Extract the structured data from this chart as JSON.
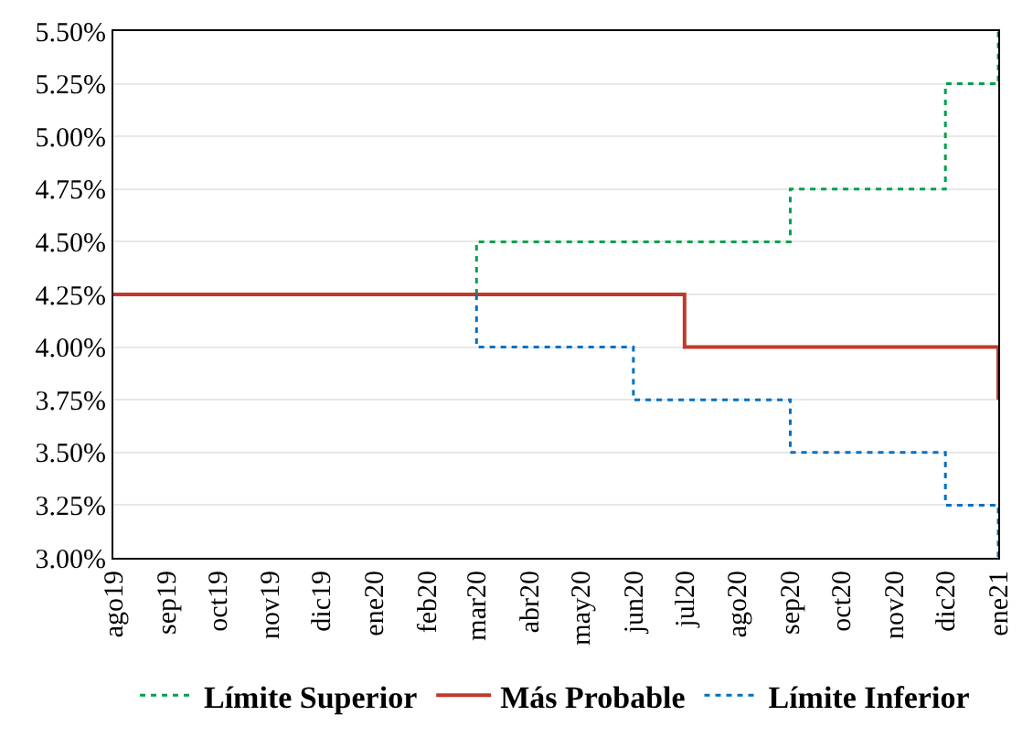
{
  "chart_data": {
    "type": "step",
    "x": [
      "2019-08",
      "2019-09",
      "2019-10",
      "2019-11",
      "2019-12",
      "2020-01",
      "2020-02",
      "2020-03",
      "2020-04",
      "2020-05",
      "2020-06",
      "2020-07",
      "2020-08",
      "2020-09",
      "2020-10",
      "2020-11",
      "2020-12",
      "2021-01"
    ],
    "series": [
      {
        "name": "Límite Superior",
        "color": "#00a050",
        "line_style": "dotted",
        "x": [
          "2020-03",
          "2020-03",
          "2020-04",
          "2020-05",
          "2020-06",
          "2020-07",
          "2020-08",
          "2020-09",
          "2020-10",
          "2020-11",
          "2020-12",
          "2021-01"
        ],
        "values": [
          4.25,
          4.5,
          4.5,
          4.5,
          4.5,
          4.5,
          4.5,
          4.75,
          4.75,
          4.75,
          5.25,
          5.5
        ]
      },
      {
        "name": "Más Probable",
        "color": "#c0392b",
        "line_style": "solid",
        "values": [
          4.25,
          4.25,
          4.25,
          4.25,
          4.25,
          4.25,
          4.25,
          4.25,
          4.25,
          4.25,
          4.25,
          4.0,
          4.0,
          4.0,
          4.0,
          4.0,
          4.0,
          3.75
        ]
      },
      {
        "name": "Límite Inferior",
        "color": "#0070c0",
        "line_style": "dotted",
        "x": [
          "2020-03",
          "2020-03",
          "2020-04",
          "2020-05",
          "2020-06",
          "2020-07",
          "2020-08",
          "2020-09",
          "2020-10",
          "2020-11",
          "2020-12",
          "2021-01"
        ],
        "values": [
          4.25,
          4.0,
          4.0,
          4.0,
          3.75,
          3.75,
          3.75,
          3.5,
          3.5,
          3.5,
          3.25,
          3.0
        ]
      }
    ],
    "xlim": [
      "2019-08",
      "2021-01"
    ],
    "xticks": [
      {
        "value": "2019-08",
        "label": "ago19"
      },
      {
        "value": "2019-09",
        "label": "sep19"
      },
      {
        "value": "2019-10",
        "label": "oct19"
      },
      {
        "value": "2019-11",
        "label": "nov19"
      },
      {
        "value": "2019-12",
        "label": "dic19"
      },
      {
        "value": "2020-01",
        "label": "ene20"
      },
      {
        "value": "2020-02",
        "label": "feb20"
      },
      {
        "value": "2020-03",
        "label": "mar20"
      },
      {
        "value": "2020-04",
        "label": "abr20"
      },
      {
        "value": "2020-05",
        "label": "may20"
      },
      {
        "value": "2020-06",
        "label": "jun20"
      },
      {
        "value": "2020-07",
        "label": "jul20"
      },
      {
        "value": "2020-08",
        "label": "ago20"
      },
      {
        "value": "2020-09",
        "label": "sep20"
      },
      {
        "value": "2020-10",
        "label": "oct20"
      },
      {
        "value": "2020-11",
        "label": "nov20"
      },
      {
        "value": "2020-12",
        "label": "dic20"
      },
      {
        "value": "2021-01",
        "label": "ene21"
      }
    ],
    "ylim": [
      3.0,
      5.5
    ],
    "yticks": [
      {
        "value": 3.0,
        "label": "3.00%"
      },
      {
        "value": 3.25,
        "label": "3.25%"
      },
      {
        "value": 3.5,
        "label": "3.50%"
      },
      {
        "value": 3.75,
        "label": "3.75%"
      },
      {
        "value": 4.0,
        "label": "4.00%"
      },
      {
        "value": 4.25,
        "label": "4.25%"
      },
      {
        "value": 4.5,
        "label": "4.50%"
      },
      {
        "value": 4.75,
        "label": "4.75%"
      },
      {
        "value": 5.0,
        "label": "5.00%"
      },
      {
        "value": 5.25,
        "label": "5.25%"
      },
      {
        "value": 5.5,
        "label": "5.50%"
      }
    ],
    "grid": "y",
    "legend": "bottom",
    "marker": "none"
  }
}
